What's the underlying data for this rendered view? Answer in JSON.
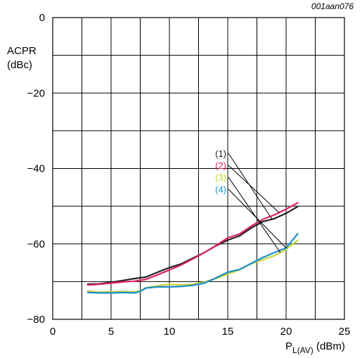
{
  "figure_code": "001aan076",
  "chart_data": {
    "type": "line",
    "xlabel_main": "P",
    "xlabel_sub": "L(AV)",
    "xlabel_unit": " (dBm)",
    "ylabel_line1": "ACPR",
    "ylabel_line2": "(dBc)",
    "xlim": [
      0,
      25
    ],
    "ylim": [
      -80,
      0
    ],
    "x_ticks": [
      0,
      5,
      10,
      15,
      20,
      25
    ],
    "x_tick_labels": [
      "0",
      "5",
      "10",
      "15",
      "20",
      "25"
    ],
    "y_ticks": [
      0,
      -20,
      -40,
      -60,
      -80
    ],
    "y_tick_labels": [
      "0",
      "−20",
      "−40",
      "−60",
      "−80"
    ],
    "grid_x_step": 2.5,
    "grid_y_step": 10,
    "grid": true,
    "series": [
      {
        "name": "(1)",
        "color": "#231f20",
        "x": [
          3,
          4,
          5,
          6,
          7,
          8,
          9,
          10,
          11,
          12,
          13,
          14,
          15,
          16,
          17,
          18,
          19,
          20,
          21
        ],
        "y": [
          -70.7,
          -70.6,
          -70.2,
          -69.7,
          -69.2,
          -68.8,
          -67.5,
          -66.3,
          -65.3,
          -63.8,
          -62.3,
          -60.5,
          -59,
          -57.9,
          -55.8,
          -54.1,
          -53.3,
          -51.9,
          -50.1
        ]
      },
      {
        "name": "(2)",
        "color": "#e0245e",
        "x": [
          3,
          4,
          5,
          6,
          7,
          8,
          9,
          10,
          11,
          12,
          13,
          14,
          15,
          16,
          17,
          18,
          19,
          20,
          21
        ],
        "y": [
          -70.9,
          -70.7,
          -70.4,
          -70.1,
          -69.9,
          -69.4,
          -68.2,
          -66.9,
          -65.6,
          -64.0,
          -62.3,
          -60.4,
          -58.4,
          -57.4,
          -55.3,
          -53.5,
          -52.3,
          -50.8,
          -49.1
        ]
      },
      {
        "name": "(3)",
        "color": "#c8d43a",
        "x": [
          3,
          4,
          5,
          6,
          7,
          7.5,
          8,
          9,
          10,
          11,
          12,
          13,
          14,
          15,
          16,
          17,
          18,
          19,
          20,
          21
        ],
        "y": [
          -72.5,
          -72.8,
          -72.7,
          -72.6,
          -72.7,
          -72.5,
          -71.6,
          -71.1,
          -70.7,
          -70.9,
          -70.7,
          -70.1,
          -69.2,
          -68.0,
          -66.9,
          -65.3,
          -64.2,
          -63.1,
          -61.5,
          -59.0
        ]
      },
      {
        "name": "(4)",
        "color": "#1a8fcb",
        "x": [
          3,
          4,
          5,
          6,
          7,
          7.5,
          8,
          9,
          10,
          11,
          12,
          13,
          14,
          15,
          16,
          17,
          18,
          19,
          20,
          21
        ],
        "y": [
          -72.9,
          -73.0,
          -73.0,
          -72.9,
          -73.0,
          -72.6,
          -71.7,
          -71.4,
          -71.4,
          -71.3,
          -71.0,
          -70.4,
          -69.0,
          -67.5,
          -66.8,
          -65.2,
          -63.6,
          -62.3,
          -61.1,
          -57.3
        ]
      }
    ]
  }
}
